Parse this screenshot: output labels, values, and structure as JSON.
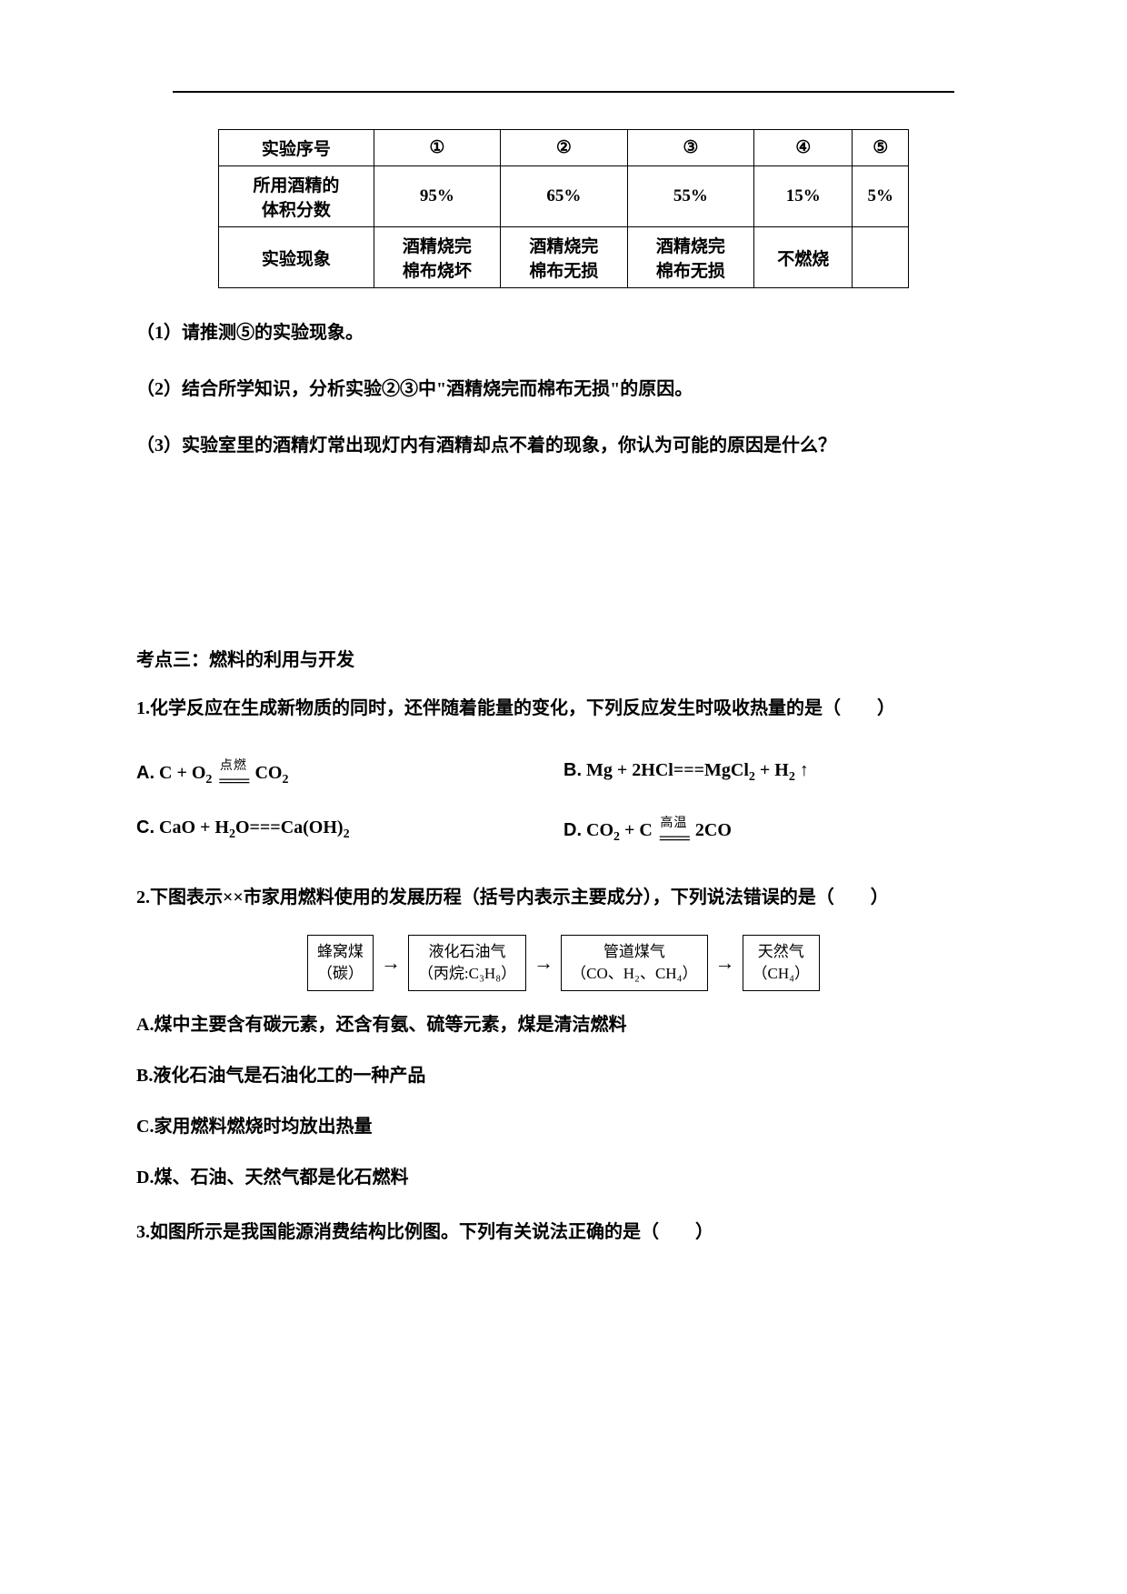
{
  "page": {
    "bg_color": "#ffffff",
    "text_color": "#000000"
  },
  "table": {
    "headers": [
      "实验序号",
      "①",
      "②",
      "③",
      "④",
      "⑤"
    ],
    "rows": [
      {
        "label": "所用酒精的\n体积分数",
        "cells": [
          "95%",
          "65%",
          "55%",
          "15%",
          "5%"
        ]
      },
      {
        "label": "实验现象",
        "cells": [
          "酒精烧完\n棉布烧坏",
          "酒精烧完\n棉布无损",
          "酒精烧完\n棉布无损",
          "不燃烧",
          ""
        ]
      }
    ],
    "border_color": "#000000",
    "col_widths": [
      "130",
      "115",
      "115",
      "115",
      "115",
      "100"
    ],
    "font_size": 19
  },
  "questions_after_table": {
    "q1": "（1）请推测⑤的实验现象。",
    "q2": "（2）结合所学知识，分析实验②③中\"酒精烧完而棉布无损\"的原因。",
    "q3": "（3）实验室里的酒精灯常出现灯内有酒精却点不着的现象，你认为可能的原因是什么？"
  },
  "section3_title": "考点三：燃料的利用与开发",
  "mc1": {
    "stem": "1.化学反应在生成新物质的同时，还伴随着能量的变化，下列反应发生时吸收热量的是（　　）",
    "options": {
      "A": {
        "label": "A.",
        "lhs": "C + O",
        "sub1": "2",
        "cond": "点燃",
        "rhs": "CO",
        "sub2": "2"
      },
      "B": {
        "label": "B.",
        "text_l": "Mg + 2HCl===MgCl",
        "sub": "2",
        "text_r": " + H",
        "sub2": "2",
        "arrow": " ↑"
      },
      "C": {
        "label": "C.",
        "text_l": "CaO + H",
        "sub1": "2",
        "text_m": "O===Ca(OH)",
        "sub2": "2"
      },
      "D": {
        "label": "D.",
        "lhs": "CO",
        "sub1": "2",
        "mid": " + C",
        "cond": "高温",
        "rhs": "2CO"
      }
    }
  },
  "mc2": {
    "stem": "2.下图表示××市家用燃料使用的发展历程（括号内表示主要成分），下列说法错误的是（　　）",
    "flow": [
      {
        "line1": "蜂窝煤",
        "line2": "（碳）"
      },
      {
        "line1": "液化石油气",
        "line2": "（丙烷:C₃H₈）"
      },
      {
        "line1": "管道煤气",
        "line2": "（CO、H₂、CH₄）"
      },
      {
        "line1": "天然气",
        "line2": "（CH₄）"
      }
    ],
    "arrow": "→",
    "options": {
      "A": "A.煤中主要含有碳元素，还含有氨、硫等元素，煤是清洁燃料",
      "B": "B.液化石油气是石油化工的一种产品",
      "C": "C.家用燃料燃烧时均放出热量",
      "D": "D.煤、石油、天然气都是化石燃料"
    }
  },
  "mc3": {
    "stem": "3.如图所示是我国能源消费结构比例图。下列有关说法正确的是（　　）"
  }
}
